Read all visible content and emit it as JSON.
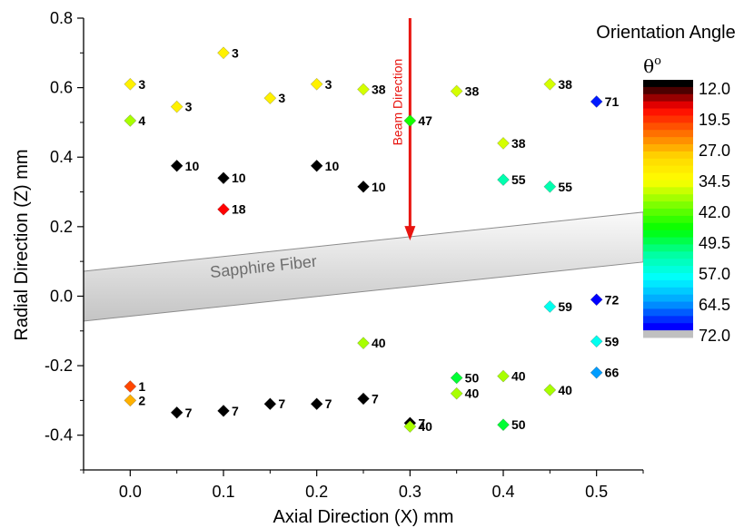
{
  "chart_data": {
    "type": "scatter",
    "xlabel": "Axial Direction (X) mm",
    "ylabel": "Radial Direction (Z) mm",
    "xlim": [
      -0.05,
      0.55
    ],
    "ylim": [
      -0.5,
      0.8
    ],
    "x_ticks": [
      "0.0",
      "0.1",
      "0.2",
      "0.3",
      "0.4",
      "0.5"
    ],
    "y_ticks": [
      "0.8",
      "0.6",
      "0.4",
      "0.2",
      "0.0",
      "-0.2",
      "-0.4"
    ],
    "x_tick_values": [
      0.0,
      0.1,
      0.2,
      0.3,
      0.4,
      0.5
    ],
    "y_tick_values": [
      0.8,
      0.6,
      0.4,
      0.2,
      0.0,
      -0.2,
      -0.4
    ],
    "marker": "diamond",
    "points": [
      {
        "x": 0.0,
        "y": 0.61,
        "label": "3"
      },
      {
        "x": 0.0,
        "y": 0.505,
        "label": "4"
      },
      {
        "x": 0.05,
        "y": 0.545,
        "label": "3"
      },
      {
        "x": 0.1,
        "y": 0.7,
        "label": "3"
      },
      {
        "x": 0.15,
        "y": 0.57,
        "label": "3"
      },
      {
        "x": 0.2,
        "y": 0.61,
        "label": "3"
      },
      {
        "x": 0.25,
        "y": 0.595,
        "label": "38"
      },
      {
        "x": 0.3,
        "y": 0.505,
        "label": "47"
      },
      {
        "x": 0.35,
        "y": 0.59,
        "label": "38"
      },
      {
        "x": 0.45,
        "y": 0.61,
        "label": "38"
      },
      {
        "x": 0.5,
        "y": 0.56,
        "label": "71"
      },
      {
        "x": 0.4,
        "y": 0.44,
        "label": "38"
      },
      {
        "x": 0.4,
        "y": 0.335,
        "label": "55"
      },
      {
        "x": 0.45,
        "y": 0.315,
        "label": "55"
      },
      {
        "x": 0.05,
        "y": 0.375,
        "label": "10"
      },
      {
        "x": 0.1,
        "y": 0.34,
        "label": "10"
      },
      {
        "x": 0.2,
        "y": 0.375,
        "label": "10"
      },
      {
        "x": 0.25,
        "y": 0.315,
        "label": "10"
      },
      {
        "x": 0.1,
        "y": 0.25,
        "label": "18"
      },
      {
        "x": 0.5,
        "y": -0.01,
        "label": "72"
      },
      {
        "x": 0.45,
        "y": -0.03,
        "label": "59"
      },
      {
        "x": 0.5,
        "y": -0.13,
        "label": "59"
      },
      {
        "x": 0.25,
        "y": -0.135,
        "label": "40"
      },
      {
        "x": 0.5,
        "y": -0.22,
        "label": "66"
      },
      {
        "x": 0.35,
        "y": -0.235,
        "label": "50"
      },
      {
        "x": 0.4,
        "y": -0.23,
        "label": "40"
      },
      {
        "x": 0.35,
        "y": -0.28,
        "label": "40"
      },
      {
        "x": 0.45,
        "y": -0.27,
        "label": "40"
      },
      {
        "x": 0.0,
        "y": -0.26,
        "label": "1"
      },
      {
        "x": 0.0,
        "y": -0.3,
        "label": "2"
      },
      {
        "x": 0.05,
        "y": -0.335,
        "label": "7"
      },
      {
        "x": 0.1,
        "y": -0.33,
        "label": "7"
      },
      {
        "x": 0.15,
        "y": -0.31,
        "label": "7"
      },
      {
        "x": 0.2,
        "y": -0.31,
        "label": "7"
      },
      {
        "x": 0.25,
        "y": -0.295,
        "label": "7"
      },
      {
        "x": 0.3,
        "y": -0.365,
        "label": "7"
      },
      {
        "x": 0.3,
        "y": -0.375,
        "label": "40"
      },
      {
        "x": 0.4,
        "y": -0.37,
        "label": "50"
      }
    ],
    "annotations": {
      "beam": {
        "text": "Beam Direction",
        "x": 0.3,
        "y_start": 0.8,
        "y_end": 0.16,
        "color": "#e8140f"
      },
      "fiber": {
        "text": "Sapphire Fiber",
        "x_start": -0.05,
        "x_end": 0.55,
        "y_start": 0.0,
        "y_end": 0.17,
        "color": "#d4d4d4"
      }
    },
    "colorbar": {
      "title": "Orientation Angle",
      "unit": "θo",
      "tick_labels": [
        "12.0",
        "19.5",
        "27.0",
        "34.5",
        "42.0",
        "49.5",
        "57.0",
        "64.5",
        "72.0"
      ],
      "min": 12.0,
      "max": 72.0,
      "stops": [
        "#000000",
        "#ff0000",
        "#ff6a00",
        "#ffd500",
        "#ffff00",
        "#7dff00",
        "#00ff00",
        "#00ff9e",
        "#00ffff",
        "#009dff",
        "#0000ff",
        "#c0c0c0"
      ]
    },
    "grid": false,
    "legend": "right"
  }
}
